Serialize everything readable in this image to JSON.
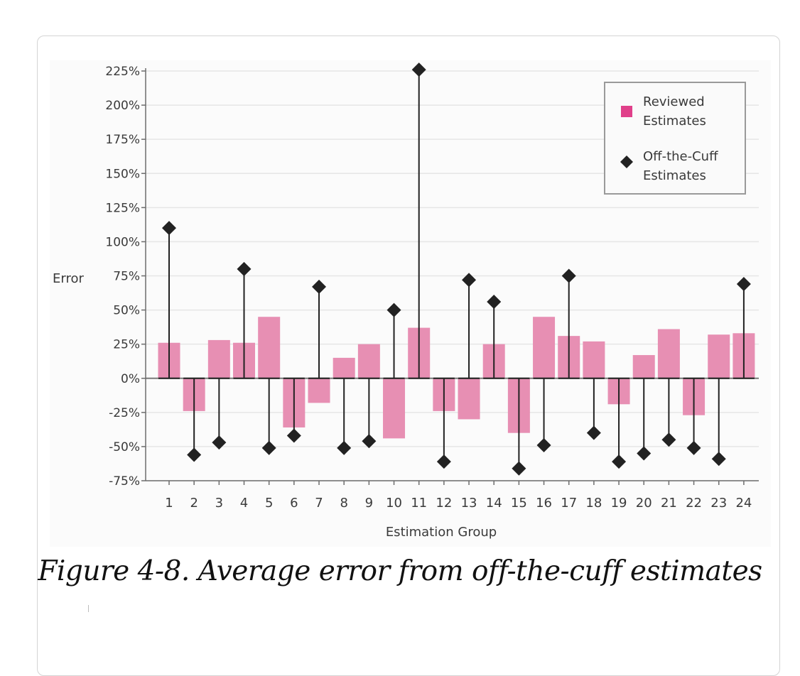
{
  "caption": "Figure 4-8. Average error from off-the-cuff estimates",
  "chart_data": {
    "type": "bar",
    "title": "",
    "xlabel": "Estimation Group",
    "ylabel": "Error",
    "ylim": [
      -75,
      225
    ],
    "yticks": [
      225,
      200,
      175,
      150,
      125,
      100,
      75,
      50,
      25,
      0,
      -25,
      -50,
      -75
    ],
    "ytick_labels": [
      "225%",
      "200%",
      "175%",
      "150%",
      "125%",
      "100%",
      "75%",
      "50%",
      "25%",
      "0%",
      "-25%",
      "-50%",
      "-75%"
    ],
    "categories": [
      "1",
      "2",
      "3",
      "4",
      "5",
      "6",
      "7",
      "8",
      "9",
      "10",
      "11",
      "12",
      "13",
      "14",
      "15",
      "16",
      "17",
      "18",
      "19",
      "20",
      "21",
      "22",
      "23",
      "24"
    ],
    "grid": true,
    "legend_position": "top-right",
    "colors": {
      "reviewed": "#e78fb3",
      "offcuff": "#222222",
      "legend_reviewed_swatch": "#e0408a",
      "axis": "#6d6d6d",
      "grid": "#e6e6e6"
    },
    "series": [
      {
        "name": "Reviewed Estimates",
        "legend_lines": [
          "Reviewed",
          "Estimates"
        ],
        "mark": "bar",
        "values": [
          26,
          -24,
          28,
          26,
          45,
          -36,
          -18,
          15,
          25,
          -44,
          37,
          -24,
          -30,
          25,
          -40,
          45,
          31,
          27,
          -19,
          17,
          36,
          -27,
          32,
          33
        ]
      },
      {
        "name": "Off-the-Cuff Estimates",
        "legend_lines": [
          "Off-the-Cuff",
          "Estimates"
        ],
        "mark": "diamond-stem",
        "values": [
          110,
          -56,
          -47,
          80,
          -51,
          -42,
          67,
          -51,
          -46,
          50,
          226,
          -61,
          72,
          56,
          -66,
          -49,
          75,
          -40,
          -61,
          -55,
          -45,
          -51,
          -59,
          69
        ]
      }
    ]
  }
}
